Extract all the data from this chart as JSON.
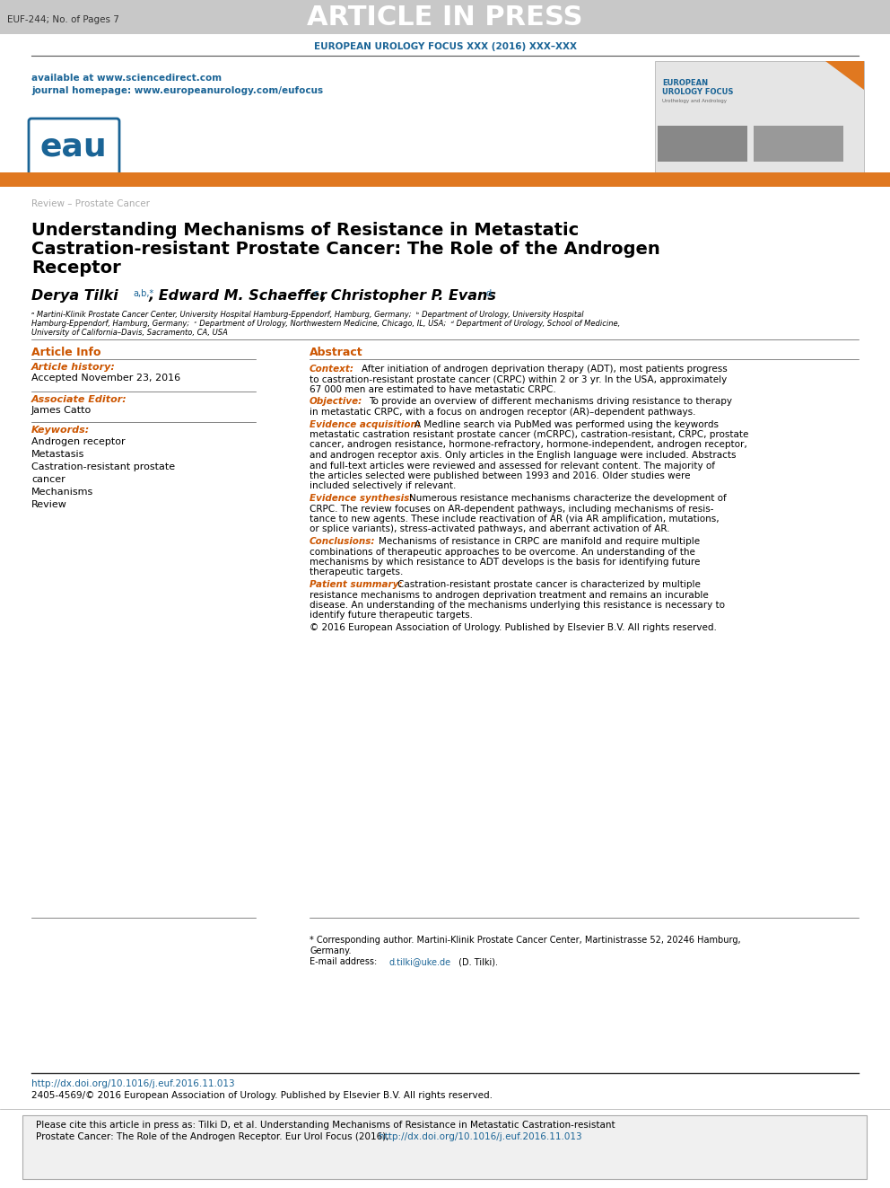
{
  "page_bg": "#ffffff",
  "header_bg": "#c8c8c8",
  "header_text": "ARTICLE IN PRESS",
  "header_text_color": "#ffffff",
  "euf_label": "EUF-244; No. of Pages 7",
  "journal_subtitle": "EUROPEAN UROLOGY FOCUS XXX (2016) XXX–XXX",
  "journal_subtitle_color": "#1a6496",
  "available_text": "available at www.sciencedirect.com",
  "homepage_text": "journal homepage: www.europeanurology.com/eufocus",
  "links_color": "#1a6496",
  "orange_bar_color": "#e07820",
  "review_label": "Review – Prostate Cancer",
  "review_label_color": "#aaaaaa",
  "article_title_color": "#000000",
  "label_color": "#cc5500",
  "article_info_color": "#cc5500",
  "article_history_label": "Article history:",
  "accepted_date": "Accepted November 23, 2016",
  "assoc_editor_label": "Associate Editor:",
  "assoc_editor_name": "James Catto",
  "keywords_label": "Keywords:",
  "keywords": [
    "Androgen receptor",
    "Metastasis",
    "Castration-resistant prostate",
    "cancer",
    "Mechanisms",
    "Review"
  ],
  "abstract_label": "Abstract",
  "copyright_text": "© 2016 European Association of Urology. Published by Elsevier B.V. All rights reserved.",
  "doi_text": "http://dx.doi.org/10.1016/j.euf.2016.11.013",
  "issn_text": "2405-4569/© 2016 European Association of Urology. Published by Elsevier B.V. All rights reserved.",
  "bottom_box_bg": "#f0f0f0",
  "cite_line1": "Please cite this article in press as: Tilki D, et al. Understanding Mechanisms of Resistance in Metastatic Castration-resistant",
  "cite_line2": "Prostate Cancer: The Role of the Androgen Receptor. Eur Urol Focus (2016), ",
  "cite_link": "http://dx.doi.org/10.1016/j.euf.2016.11.013"
}
